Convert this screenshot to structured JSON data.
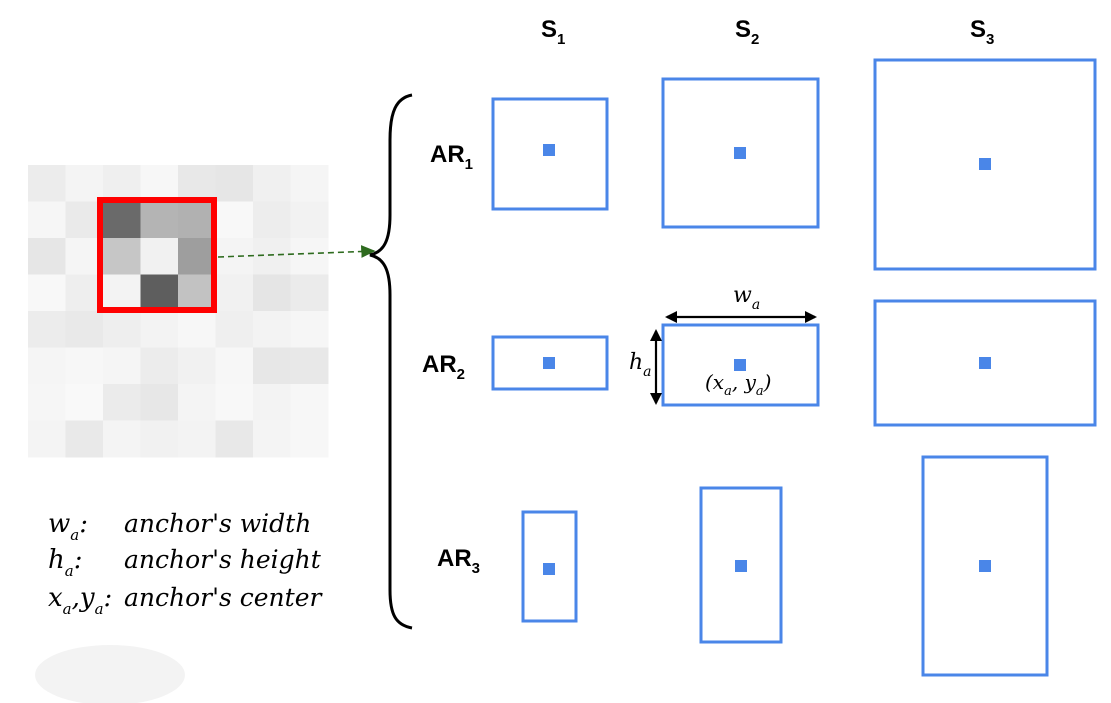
{
  "columns": [
    {
      "base": "S",
      "sub": "1"
    },
    {
      "base": "S",
      "sub": "2"
    },
    {
      "base": "S",
      "sub": "3"
    }
  ],
  "rows": [
    {
      "base": "AR",
      "sub": "1"
    },
    {
      "base": "AR",
      "sub": "2"
    },
    {
      "base": "AR",
      "sub": "3"
    }
  ],
  "annotations": {
    "width_label": {
      "base": "w",
      "sub": "a"
    },
    "height_label": {
      "base": "h",
      "sub": "a"
    },
    "center_label": {
      "open": "(x",
      "sub1": "a",
      "mid": ", y",
      "sub2": "a",
      "close": ")"
    }
  },
  "legend": [
    {
      "symbol": "w",
      "symbol_sub": "a",
      "suffix": ":",
      "text": "anchor's width"
    },
    {
      "symbol": "h",
      "symbol_sub": "a",
      "suffix": ":",
      "text": "anchor's height"
    },
    {
      "symbol": "x",
      "symbol_sub": "a",
      "symbol2": ",y",
      "symbol2_sub": "a",
      "suffix": ":",
      "text": "anchor's center"
    }
  ],
  "colors": {
    "anchor_box": "#4a86e8",
    "highlight": "#ff0000",
    "arrow": "#2e6b1f"
  }
}
